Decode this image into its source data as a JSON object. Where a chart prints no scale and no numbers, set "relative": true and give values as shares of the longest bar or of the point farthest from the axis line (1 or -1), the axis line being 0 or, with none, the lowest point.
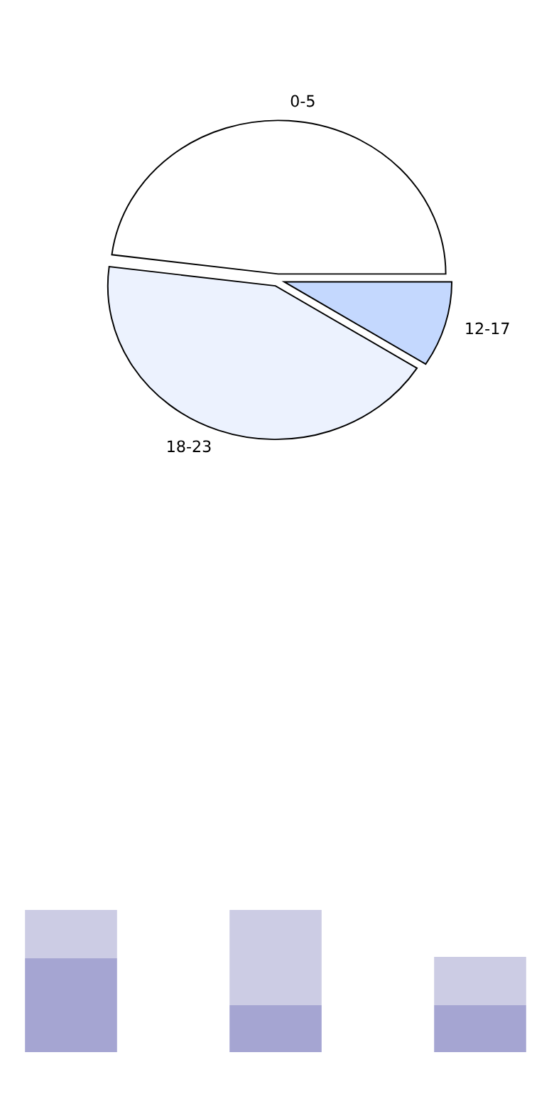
{
  "chart_data": [
    {
      "type": "pie",
      "categories": [
        "0-5",
        "18-23",
        "12-17"
      ],
      "values": [
        48,
        43,
        9
      ],
      "colors": [
        "#ffffff",
        "#ecf2fe",
        "#c4d8fe"
      ]
    },
    {
      "type": "bar",
      "relative": true,
      "stacked": true,
      "categories": [
        null,
        null,
        null
      ],
      "series": [
        {
          "color": "#a5a5d2",
          "values": [
            0.66,
            0.33,
            0.33
          ]
        },
        {
          "color": "#cccce4",
          "values": [
            0.34,
            0.67,
            0.34
          ]
        }
      ]
    }
  ]
}
